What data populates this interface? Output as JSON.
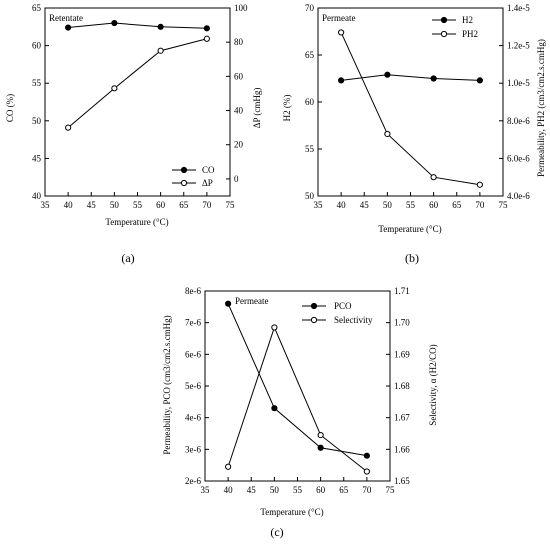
{
  "chart_data": [
    {
      "type": "line",
      "panel": "(a)",
      "inside_label": "Retentate",
      "xlabel": "Temperature (°C)",
      "xlim": [
        35,
        75
      ],
      "x_ticks": [
        35,
        40,
        45,
        50,
        55,
        60,
        65,
        70,
        75
      ],
      "ylabel_left": "CO (%)",
      "ylim_left": [
        40,
        65
      ],
      "y_ticks_left": [
        40,
        45,
        50,
        55,
        60,
        65
      ],
      "ylabel_right": "ΔP (cmHg)",
      "ylim_right": [
        -10,
        100
      ],
      "y_ticks_right": [
        0,
        20,
        40,
        60,
        80,
        100
      ],
      "legend_position": "bottom-right",
      "series": [
        {
          "name": "CO",
          "marker": "filled-circle",
          "axis": "left",
          "x": [
            40,
            50,
            60,
            70
          ],
          "y": [
            62.4,
            63.0,
            62.5,
            62.3
          ]
        },
        {
          "name": "ΔP",
          "marker": "open-circle",
          "axis": "right",
          "x": [
            40,
            50,
            60,
            70
          ],
          "y": [
            30,
            53,
            75,
            82
          ]
        }
      ]
    },
    {
      "type": "line",
      "panel": "(b)",
      "inside_label": "Permeate",
      "xlabel": "Temperature (°C)",
      "xlim": [
        35,
        75
      ],
      "x_ticks": [
        35,
        40,
        45,
        50,
        55,
        60,
        65,
        70,
        75
      ],
      "ylabel_left": "H2 (%)",
      "ylim_left": [
        50,
        70
      ],
      "y_ticks_left": [
        50,
        55,
        60,
        65,
        70
      ],
      "ylabel_right": "Permeability, PH2 (cm3/cm2.s.cmHg)",
      "ylim_right": [
        4e-06,
        1.4e-05
      ],
      "y_ticks_right": [
        "4.0e-6",
        "6.0e-6",
        "8.0e-6",
        "1.0e-5",
        "1.2e-5",
        "1.4e-5"
      ],
      "y_ticks_right_values": [
        4e-06,
        6e-06,
        8e-06,
        1e-05,
        1.2e-05,
        1.4e-05
      ],
      "legend_position": "top-right",
      "series": [
        {
          "name": "H2",
          "marker": "filled-circle",
          "axis": "left",
          "x": [
            40,
            50,
            60,
            70
          ],
          "y": [
            62.3,
            62.9,
            62.5,
            62.3
          ]
        },
        {
          "name": "PH2",
          "marker": "open-circle",
          "axis": "right",
          "x": [
            40,
            50,
            60,
            70
          ],
          "y": [
            1.27e-05,
            7.3e-06,
            5e-06,
            4.6e-06
          ]
        }
      ]
    },
    {
      "type": "line",
      "panel": "(c)",
      "inside_label": "Permeate",
      "xlabel": "Temperature (°C)",
      "xlim": [
        35,
        75
      ],
      "x_ticks": [
        35,
        40,
        45,
        50,
        55,
        60,
        65,
        70,
        75
      ],
      "ylabel_left": "Permeability, PCO (cm3/cm2.s.cmHg)",
      "ylim_left": [
        2e-06,
        8e-06
      ],
      "y_ticks_left": [
        "2e-6",
        "3e-6",
        "4e-6",
        "5e-6",
        "6e-6",
        "7e-6",
        "8e-6"
      ],
      "y_ticks_left_values": [
        2e-06,
        3e-06,
        4e-06,
        5e-06,
        6e-06,
        7e-06,
        8e-06
      ],
      "ylabel_right": "Selectivity, α (H2/CO)",
      "ylim_right": [
        1.65,
        1.71
      ],
      "y_ticks_right": [
        1.65,
        1.66,
        1.67,
        1.68,
        1.69,
        1.7,
        1.71
      ],
      "legend_position": "top-right",
      "series": [
        {
          "name": "PCO",
          "marker": "filled-circle",
          "axis": "left",
          "x": [
            40,
            50,
            60,
            70
          ],
          "y": [
            7.6e-06,
            4.3e-06,
            3.05e-06,
            2.8e-06
          ]
        },
        {
          "name": "Selectivity",
          "marker": "open-circle",
          "axis": "right",
          "x": [
            40,
            50,
            60,
            70
          ],
          "y": [
            1.6545,
            1.6985,
            1.6645,
            1.653
          ]
        }
      ]
    }
  ],
  "captions": {
    "a": "(a)",
    "b": "(b)",
    "c": "(c)"
  }
}
